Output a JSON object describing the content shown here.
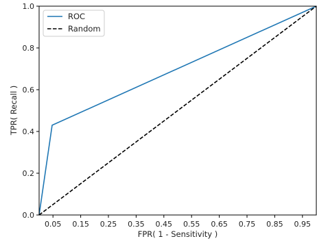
{
  "chart_data": {
    "type": "line",
    "title": "",
    "xlabel": "FPR( 1 - Sensitivity )",
    "ylabel": "TPR( Recall )",
    "xlim": [
      0.0,
      1.0
    ],
    "ylim": [
      0.0,
      1.0
    ],
    "xticks": [
      0.05,
      0.15,
      0.25,
      0.35,
      0.45,
      0.55,
      0.65,
      0.75,
      0.85,
      0.95
    ],
    "xtick_labels": [
      "0.05",
      "0.15",
      "0.25",
      "0.35",
      "0.45",
      "0.55",
      "0.65",
      "0.75",
      "0.85",
      "0.95"
    ],
    "yticks": [
      0.0,
      0.2,
      0.4,
      0.6,
      0.8,
      1.0
    ],
    "ytick_labels": [
      "0.0",
      "0.2",
      "0.4",
      "0.6",
      "0.8",
      "1.0"
    ],
    "grid": false,
    "legend_position": "top-left",
    "series": [
      {
        "name": "ROC",
        "style": "solid",
        "color": "#1f77b4",
        "x": [
          0.0,
          0.047,
          1.0
        ],
        "y": [
          0.0,
          0.43,
          1.0
        ]
      },
      {
        "name": "Random",
        "style": "dashed",
        "color": "#000000",
        "x": [
          0.0,
          1.0
        ],
        "y": [
          0.0,
          1.0
        ]
      }
    ]
  }
}
